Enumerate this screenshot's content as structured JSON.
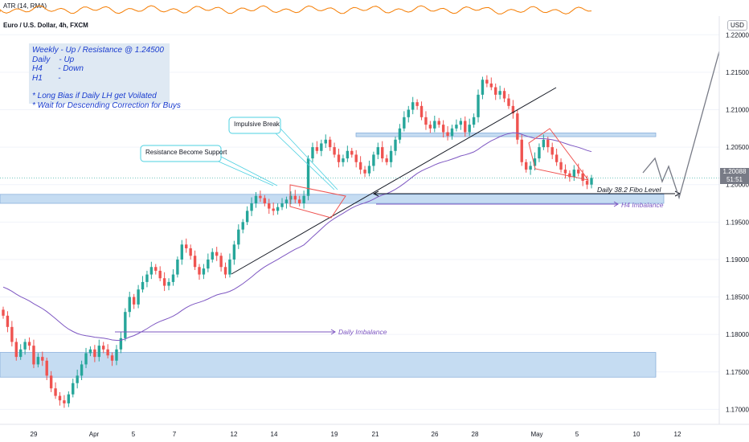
{
  "header": {
    "indicator_label": "ATR (14, RMA)",
    "symbol_label": "Euro / U.S. Dollar, 4h, FXCM",
    "currency": "USD"
  },
  "notes": {
    "lines": [
      "Weekly - Up / Resistance @ 1.24500",
      "Daily    - Up",
      "H4       - Down",
      "H1       -",
      "",
      "* Long Bias if Daily LH get Voilated",
      "* Wait for Descending Correction for Buys"
    ]
  },
  "annotations": {
    "impulsive_break": "Impulsive Break",
    "resistance_support": "Resistance Become Support",
    "fibo_level": "Daily 38.2 Fibo Level",
    "h4_imbalance": "H4 Imbalance",
    "daily_imbalance": "Daily Imbalance"
  },
  "price_label": {
    "price": "1.20088",
    "countdown": "51:51"
  },
  "colors": {
    "up": "#26a69a",
    "down": "#ef5350",
    "ma": "#7e57c2",
    "zone": "#c5dcf2",
    "atr": "#f57c00",
    "callout": "#4dd0e1",
    "note_text": "#1a3ccf"
  },
  "chart_data": {
    "type": "candlestick",
    "title": "Euro / U.S. Dollar, 4h, FXCM",
    "x_ticks": [
      "29",
      "Apr",
      "5",
      "7",
      "12",
      "14",
      "19",
      "21",
      "26",
      "28",
      "May",
      "5",
      "10",
      "12"
    ],
    "y_ticks": [
      "1.22000",
      "1.21500",
      "1.21000",
      "1.20500",
      "1.20000",
      "1.19500",
      "1.19000",
      "1.18500",
      "1.18000",
      "1.17500",
      "1.17000"
    ],
    "ylim": [
      1.168,
      1.2225
    ],
    "last_price": 1.20088,
    "zones": [
      {
        "from": 1.1975,
        "to": 1.1987
      },
      {
        "from": 1.2064,
        "to": 1.2069
      },
      {
        "from": 1.1743,
        "to": 1.1776
      }
    ],
    "series": [
      {
        "name": "EUR/USD 4h close (approx.)",
        "values": [
          1.1825,
          1.181,
          1.179,
          1.177,
          1.178,
          1.179,
          1.1785,
          1.176,
          1.177,
          1.1765,
          1.1745,
          1.1728,
          1.1718,
          1.1712,
          1.1708,
          1.172,
          1.1735,
          1.1745,
          1.176,
          1.1775,
          1.178,
          1.177,
          1.1785,
          1.178,
          1.1772,
          1.1765,
          1.178,
          1.1795,
          1.183,
          1.185,
          1.184,
          1.186,
          1.187,
          1.188,
          1.189,
          1.1885,
          1.1875,
          1.1865,
          1.187,
          1.188,
          1.19,
          1.192,
          1.1915,
          1.1905,
          1.189,
          1.188,
          1.1888,
          1.19,
          1.191,
          1.1905,
          1.189,
          1.188,
          1.19,
          1.192,
          1.194,
          1.195,
          1.1965,
          1.1975,
          1.1985,
          1.1982,
          1.1975,
          1.1968,
          1.1965,
          1.197,
          1.1975,
          1.198,
          1.1985,
          1.198,
          1.1975,
          1.1985,
          1.2035,
          1.205,
          1.2045,
          1.2055,
          1.206,
          1.205,
          1.204,
          1.203,
          1.2035,
          1.2045,
          1.204,
          1.203,
          1.202,
          1.2015,
          1.2025,
          1.204,
          1.205,
          1.2035,
          1.203,
          1.2045,
          1.206,
          1.2075,
          1.209,
          1.21,
          1.211,
          1.2105,
          1.209,
          1.208,
          1.2075,
          1.2085,
          1.208,
          1.207,
          1.2065,
          1.2075,
          1.208,
          1.2085,
          1.207,
          1.208,
          1.209,
          1.212,
          1.214,
          1.2135,
          1.213,
          1.212,
          1.2125,
          1.2115,
          1.2105,
          1.2095,
          1.206,
          1.203,
          1.202,
          1.2025,
          1.2035,
          1.205,
          1.206,
          1.205,
          1.204,
          1.203,
          1.202,
          1.2015,
          1.201,
          1.202,
          1.2015,
          1.2005,
          1.2,
          1.2009
        ]
      },
      {
        "name": "Moving average",
        "values": []
      }
    ]
  }
}
